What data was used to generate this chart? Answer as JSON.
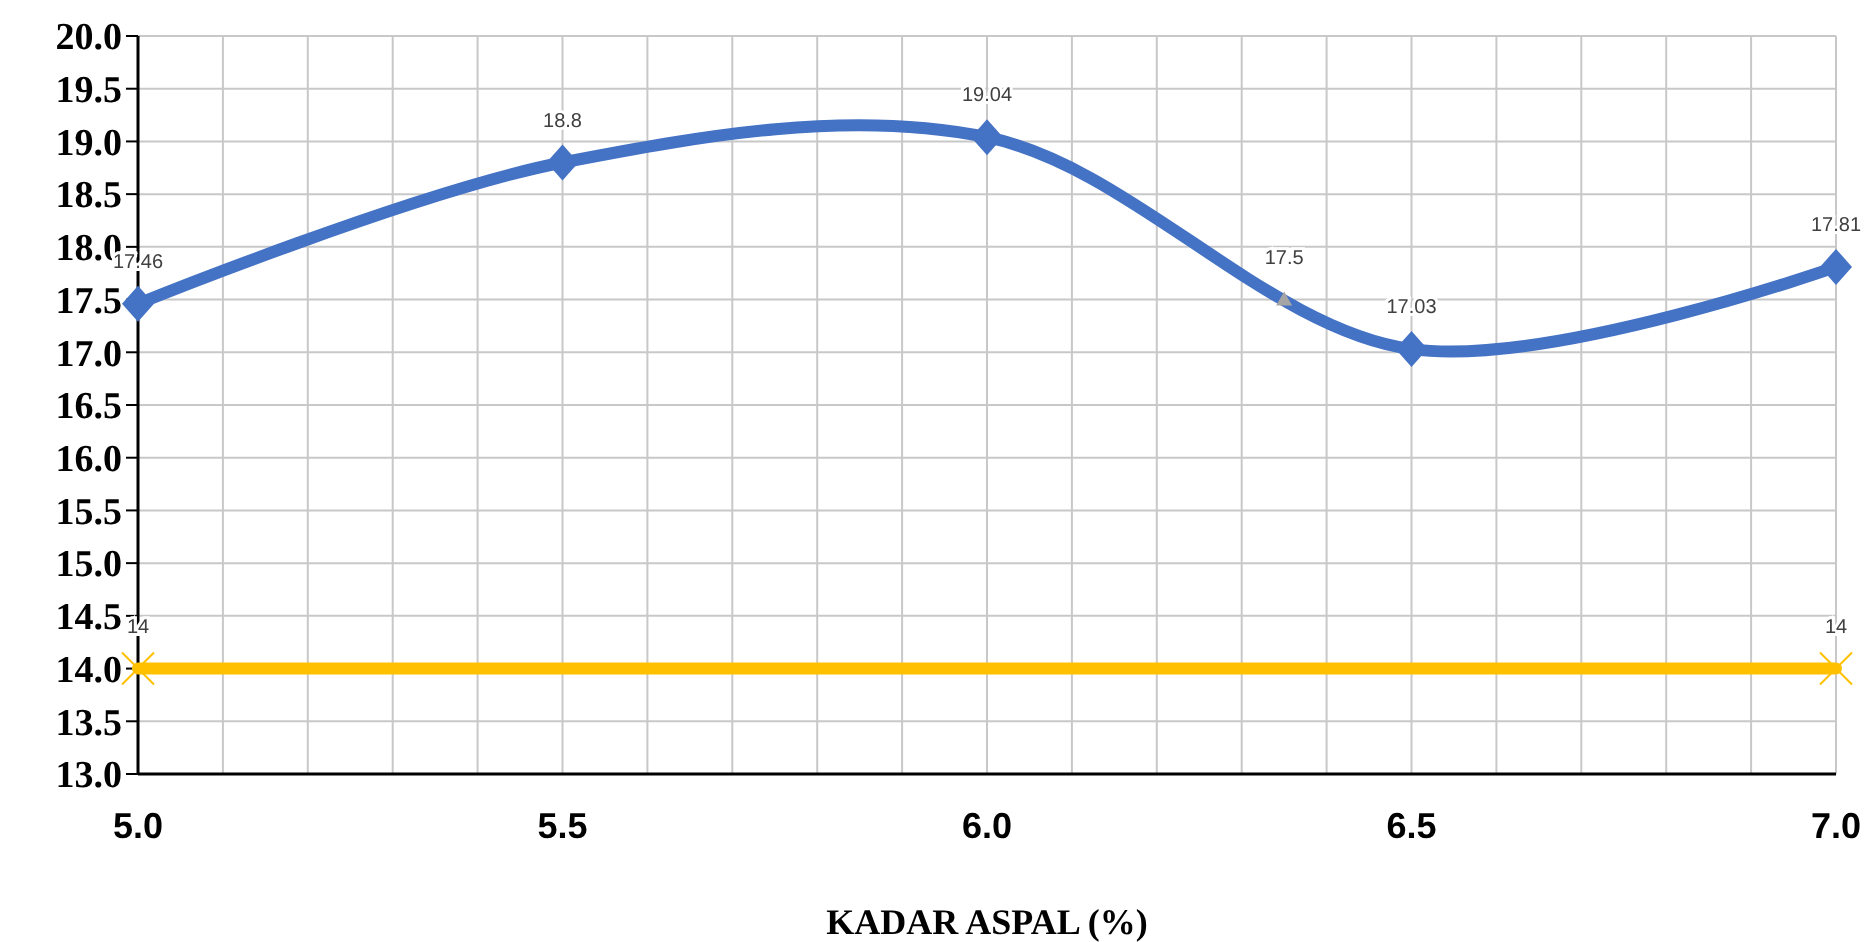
{
  "chart_data": {
    "type": "line",
    "xlabel": "KADAR ASPAL (%)",
    "x": [
      5.0,
      5.5,
      6.0,
      6.5,
      7.0
    ],
    "series": [
      {
        "color": "#4472c4",
        "values": [
          17.46,
          18.8,
          19.04,
          17.03,
          17.81
        ],
        "marker": "diamond"
      },
      {
        "color": "#ffc000",
        "x": [
          5.0,
          7.0
        ],
        "values": [
          14,
          14
        ],
        "marker": "cross"
      },
      {
        "type": "scatter",
        "color": "#a5a5a5",
        "x": [
          6.35
        ],
        "values": [
          17.5
        ],
        "marker": "triangle"
      }
    ],
    "xlim": [
      5.0,
      7.0
    ],
    "xticks": [
      {
        "value": 5.0,
        "label": "5.0"
      },
      {
        "value": 5.1,
        "label": null
      },
      {
        "value": 5.2,
        "label": null
      },
      {
        "value": 5.3,
        "label": null
      },
      {
        "value": 5.4,
        "label": null
      },
      {
        "value": 5.5,
        "label": "5.5"
      },
      {
        "value": 5.6,
        "label": null
      },
      {
        "value": 5.7,
        "label": null
      },
      {
        "value": 5.8,
        "label": null
      },
      {
        "value": 5.9,
        "label": null
      },
      {
        "value": 6.0,
        "label": "6.0"
      },
      {
        "value": 6.1,
        "label": null
      },
      {
        "value": 6.2,
        "label": null
      },
      {
        "value": 6.3,
        "label": null
      },
      {
        "value": 6.4,
        "label": null
      },
      {
        "value": 6.5,
        "label": "6.5"
      },
      {
        "value": 6.6,
        "label": null
      },
      {
        "value": 6.7,
        "label": null
      },
      {
        "value": 6.8,
        "label": null
      },
      {
        "value": 6.9,
        "label": null
      },
      {
        "value": 7.0,
        "label": "7.0"
      }
    ],
    "ylim": [
      13,
      20
    ],
    "yticks": [
      {
        "value": 13,
        "label": "13.0"
      },
      13.5,
      {
        "value": 14,
        "label": "14.0"
      },
      14.5,
      {
        "value": 15,
        "label": "15.0"
      },
      15.5,
      {
        "value": 16,
        "label": "16.0"
      },
      16.5,
      {
        "value": 17,
        "label": "17.0"
      },
      17.5,
      {
        "value": 18,
        "label": "18.0"
      },
      18.5,
      {
        "value": 19,
        "label": "19.0"
      },
      19.5,
      {
        "value": 20,
        "label": "20.0"
      }
    ],
    "grid": true,
    "data_labels": true
  }
}
